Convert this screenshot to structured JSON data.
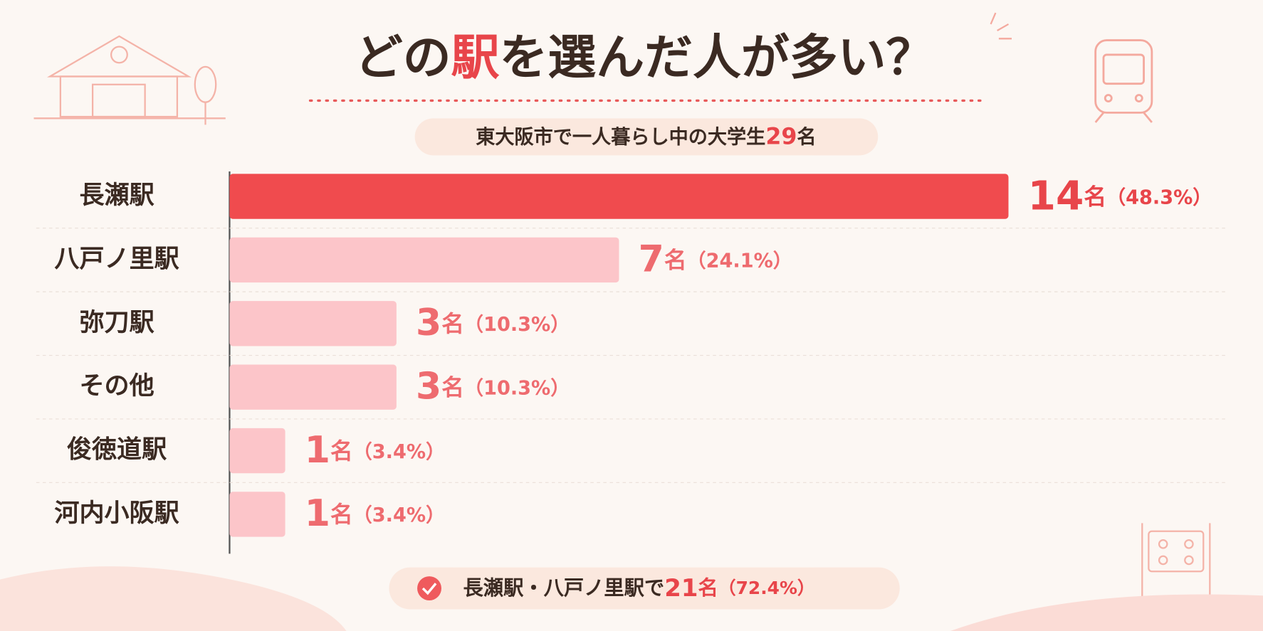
{
  "chart_data": {
    "type": "bar",
    "title": {
      "before": "どの",
      "highlight": "駅",
      "after": "を選んだ人が多い？"
    },
    "subtitle": {
      "text": "東大阪市で一人暮らし中の大学生",
      "value": 29,
      "unit": "名"
    },
    "categories": [
      "長瀬駅",
      "八戸ノ里駅",
      "弥刀駅",
      "その他",
      "俊徳道駅",
      "河内小阪駅"
    ],
    "values": [
      14,
      7,
      3,
      3,
      1,
      1
    ],
    "unit": "名",
    "percents": [
      48.3,
      24.1,
      10.3,
      10.3,
      3.4,
      3.4
    ],
    "percent_labels": [
      "（48.3%）",
      "（24.1%）",
      "（10.3%）",
      "（10.3%）",
      "（3.4%）",
      "（3.4%）"
    ],
    "colors": [
      "#f04b4e",
      "#fcc5c9",
      "#fcc5c9",
      "#fcc5c9",
      "#fcc5c9",
      "#fcc5c9"
    ],
    "footer": {
      "text": "長瀬駅・八戸ノ里駅で",
      "value": 21,
      "unit": "名",
      "percent": 72.4,
      "percent_label": "（72.4%）"
    }
  }
}
